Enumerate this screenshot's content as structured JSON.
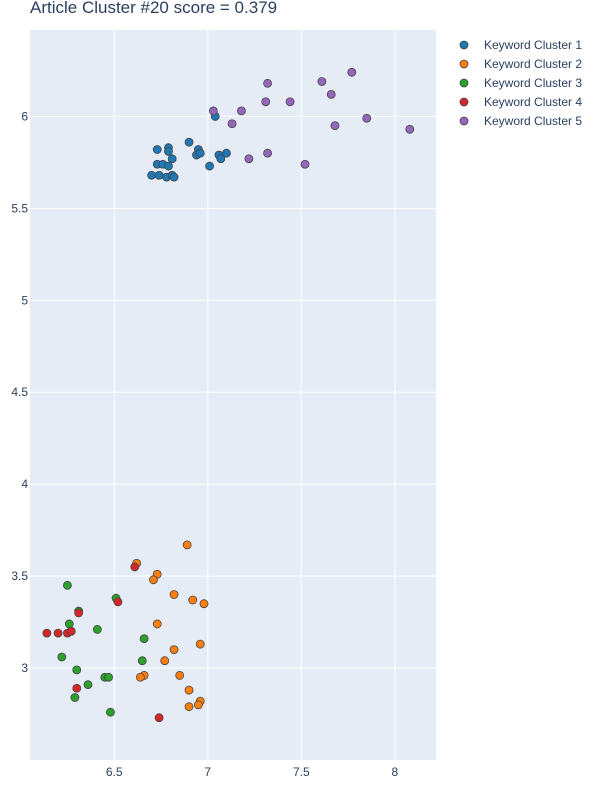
{
  "chart_data": {
    "type": "scatter",
    "title": "Article Cluster #20 score = 0.379",
    "xlabel": "",
    "ylabel": "",
    "xlim": [
      6.05,
      8.22
    ],
    "ylim": [
      2.5,
      6.47
    ],
    "xticks": [
      6.5,
      7,
      7.5,
      8
    ],
    "xtick_labels": [
      "6.5",
      "7",
      "7.5",
      "8"
    ],
    "yticks": [
      3,
      3.5,
      4,
      4.5,
      5,
      5.5,
      6
    ],
    "ytick_labels": [
      "3",
      "3.5",
      "4",
      "4.5",
      "5",
      "5.5",
      "6"
    ],
    "grid": true,
    "legend_position": "top-right",
    "series": [
      {
        "name": "Keyword Cluster 1",
        "color": "#1f77b4",
        "points": [
          [
            6.73,
            5.82
          ],
          [
            6.79,
            5.83
          ],
          [
            6.79,
            5.81
          ],
          [
            6.9,
            5.86
          ],
          [
            6.95,
            5.82
          ],
          [
            6.94,
            5.79
          ],
          [
            6.96,
            5.8
          ],
          [
            7.04,
            6.0
          ],
          [
            7.06,
            5.79
          ],
          [
            7.07,
            5.77
          ],
          [
            7.1,
            5.8
          ],
          [
            7.01,
            5.73
          ],
          [
            6.73,
            5.74
          ],
          [
            6.76,
            5.74
          ],
          [
            6.79,
            5.73
          ],
          [
            6.81,
            5.77
          ],
          [
            6.7,
            5.68
          ],
          [
            6.74,
            5.68
          ],
          [
            6.78,
            5.67
          ],
          [
            6.81,
            5.68
          ],
          [
            6.82,
            5.67
          ]
        ]
      },
      {
        "name": "Keyword Cluster 2",
        "color": "#ff7f0e",
        "points": [
          [
            6.62,
            3.57
          ],
          [
            6.89,
            3.67
          ],
          [
            6.73,
            3.51
          ],
          [
            6.71,
            3.48
          ],
          [
            6.82,
            3.4
          ],
          [
            6.92,
            3.37
          ],
          [
            6.98,
            3.35
          ],
          [
            6.73,
            3.24
          ],
          [
            6.96,
            3.13
          ],
          [
            6.82,
            3.1
          ],
          [
            6.77,
            3.04
          ],
          [
            6.66,
            2.96
          ],
          [
            6.64,
            2.95
          ],
          [
            6.85,
            2.96
          ],
          [
            6.9,
            2.88
          ],
          [
            6.96,
            2.82
          ],
          [
            6.95,
            2.8
          ],
          [
            6.9,
            2.79
          ]
        ]
      },
      {
        "name": "Keyword Cluster 3",
        "color": "#2ca02c",
        "points": [
          [
            6.25,
            3.45
          ],
          [
            6.51,
            3.38
          ],
          [
            6.31,
            3.31
          ],
          [
            6.26,
            3.24
          ],
          [
            6.27,
            3.2
          ],
          [
            6.41,
            3.21
          ],
          [
            6.66,
            3.16
          ],
          [
            6.22,
            3.06
          ],
          [
            6.65,
            3.04
          ],
          [
            6.3,
            2.99
          ],
          [
            6.45,
            2.95
          ],
          [
            6.47,
            2.95
          ],
          [
            6.36,
            2.91
          ],
          [
            6.29,
            2.84
          ],
          [
            6.48,
            2.76
          ]
        ]
      },
      {
        "name": "Keyword Cluster 4",
        "color": "#d62728",
        "points": [
          [
            6.61,
            3.55
          ],
          [
            6.52,
            3.36
          ],
          [
            6.31,
            3.3
          ],
          [
            6.14,
            3.19
          ],
          [
            6.2,
            3.19
          ],
          [
            6.25,
            3.19
          ],
          [
            6.27,
            3.2
          ],
          [
            6.3,
            2.89
          ],
          [
            6.74,
            2.73
          ]
        ]
      },
      {
        "name": "Keyword Cluster 5",
        "color": "#9467bd",
        "points": [
          [
            7.32,
            6.18
          ],
          [
            7.61,
            6.19
          ],
          [
            7.77,
            6.24
          ],
          [
            7.31,
            6.08
          ],
          [
            7.44,
            6.08
          ],
          [
            7.66,
            6.12
          ],
          [
            7.03,
            6.03
          ],
          [
            7.18,
            6.03
          ],
          [
            7.13,
            5.96
          ],
          [
            7.68,
            5.95
          ],
          [
            7.85,
            5.99
          ],
          [
            8.08,
            5.93
          ],
          [
            7.22,
            5.77
          ],
          [
            7.32,
            5.8
          ],
          [
            7.52,
            5.74
          ]
        ]
      }
    ]
  }
}
